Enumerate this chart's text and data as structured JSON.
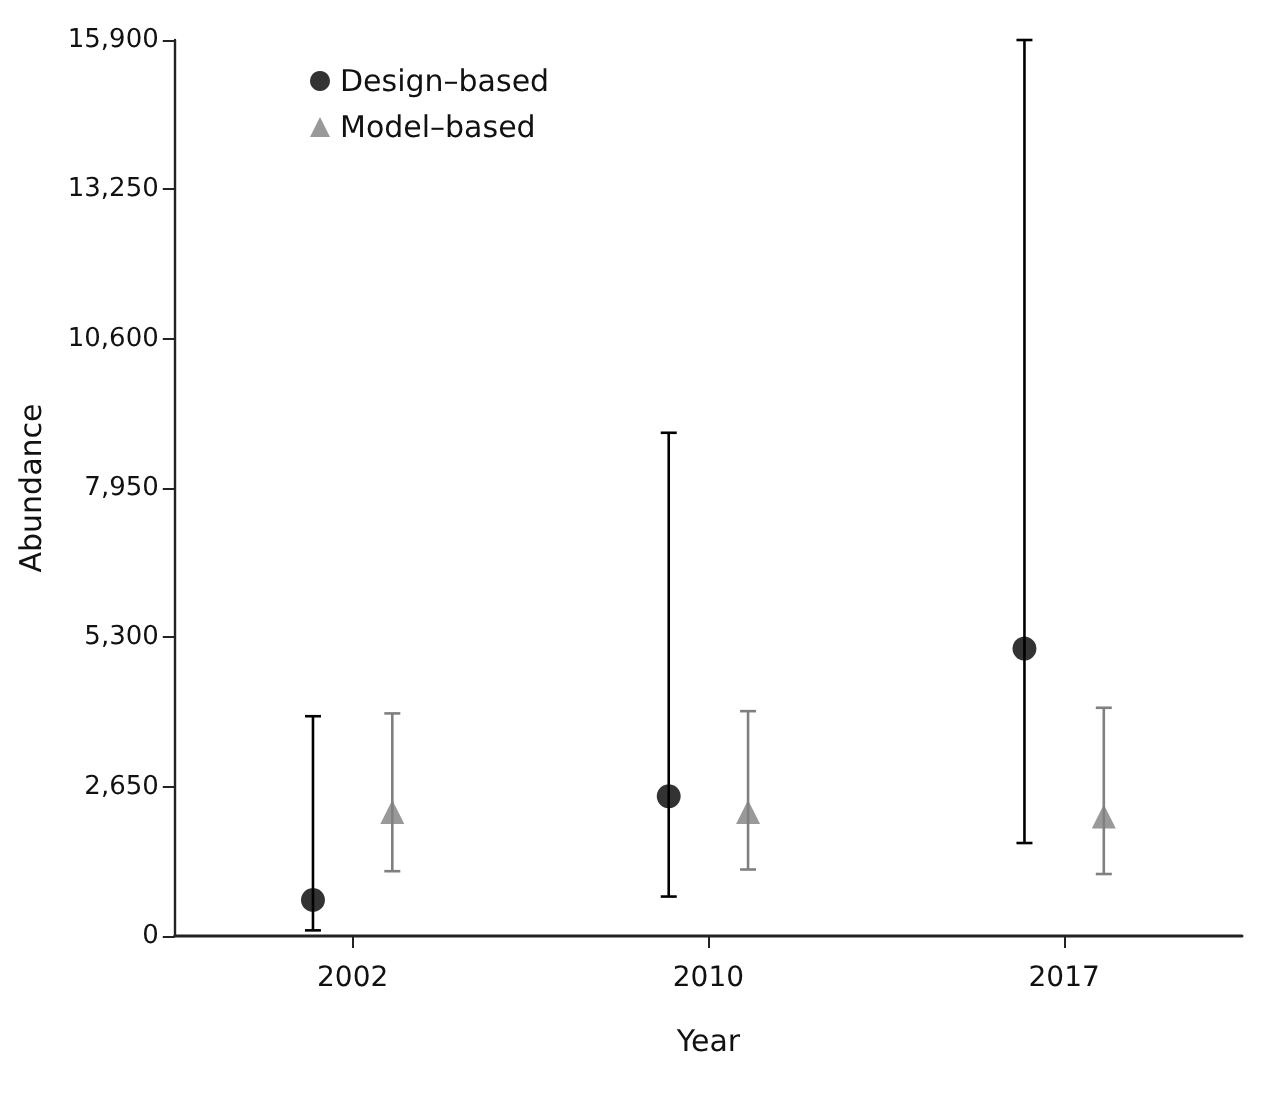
{
  "chart_data": {
    "type": "scatter",
    "xlabel": "Year",
    "ylabel": "Abundance",
    "categories": [
      "2002",
      "2010",
      "2017"
    ],
    "series": [
      {
        "name": "Design–based",
        "color": "#000000",
        "marker": "circle",
        "values": [
          640,
          2480,
          5100
        ],
        "errors": [
          [
            100,
            3900
          ],
          [
            700,
            8930
          ],
          [
            1650,
            15900
          ]
        ]
      },
      {
        "name": "Model–based",
        "color": "#808080",
        "marker": "triangle",
        "values": [
          2200,
          2200,
          2120
        ],
        "errors": [
          [
            1150,
            3950
          ],
          [
            1180,
            3990
          ],
          [
            1100,
            4050
          ]
        ]
      }
    ],
    "ylim": [
      0,
      15900
    ],
    "yticks": [
      {
        "value": 0,
        "label": "0"
      },
      {
        "value": 2650,
        "label": "2,650"
      },
      {
        "value": 5300,
        "label": "5,300"
      },
      {
        "value": 7950,
        "label": "7,950"
      },
      {
        "value": 10600,
        "label": "10,600"
      },
      {
        "value": 13250,
        "label": "13,250"
      },
      {
        "value": 15900,
        "label": "15,900"
      }
    ],
    "grid": false,
    "legend": "top left"
  }
}
